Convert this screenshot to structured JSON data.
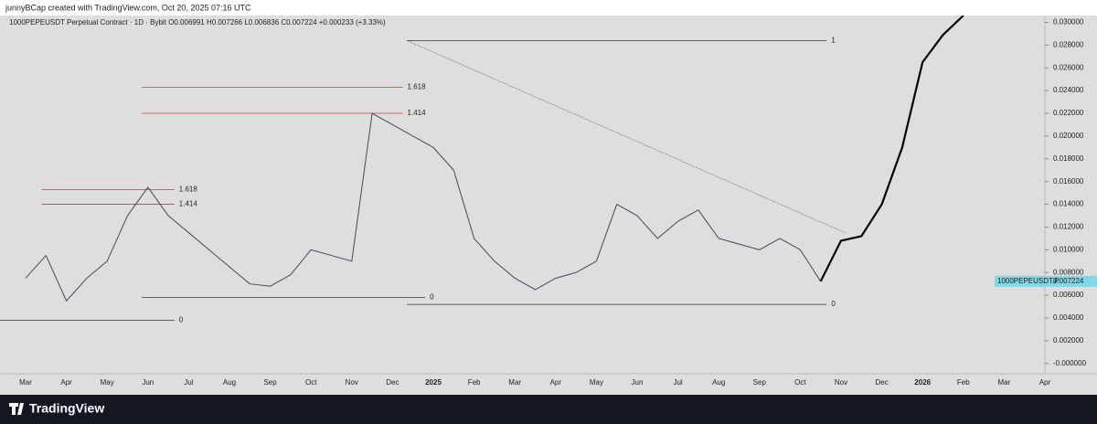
{
  "header": {
    "credit": "junnyBCap created with TradingView.com, Oct 20, 2025 07:16 UTC",
    "brand": "TradingView"
  },
  "chart_data": {
    "type": "line",
    "title": "1000PEPEUSDT Perpetual Contract · 1D · Bybit  O0.006991  H0.007266  L0.006836  C0.007224  +0.000233 (+3.33%)",
    "categories": [
      "Mar",
      null,
      "Apr",
      null,
      "May",
      null,
      "Jun",
      null,
      "Jul",
      null,
      "Aug",
      null,
      "Sep",
      null,
      "Oct",
      null,
      "Nov",
      null,
      "Dec",
      null,
      "2025",
      null,
      "Feb",
      null,
      "Mar",
      null,
      "Apr",
      null,
      "May",
      null,
      "Jun",
      null,
      "Jul",
      null,
      "Aug",
      null,
      "Sep",
      null,
      "Oct",
      null,
      "Nov",
      null,
      "Dec",
      null,
      "2026",
      null,
      "Feb",
      null,
      "Mar",
      null,
      "Apr"
    ],
    "series": [
      {
        "name": "1000PEPEUSDT.P",
        "color": "#3d4b5e",
        "width": 1,
        "values": [
          0.0075,
          0.0095,
          0.0055,
          0.0075,
          0.009,
          0.013,
          0.0155,
          0.013,
          0.0115,
          0.01,
          0.0085,
          0.007,
          0.0068,
          0.0078,
          0.01,
          0.0095,
          0.009,
          0.022,
          0.021,
          0.02,
          0.019,
          0.017,
          0.011,
          0.009,
          0.0075,
          0.0065,
          0.0075,
          0.008,
          0.009,
          0.014,
          0.013,
          0.011,
          0.0125,
          0.0135,
          0.011,
          0.0105,
          0.01,
          0.011,
          0.01,
          0.007224,
          null,
          null,
          null,
          null,
          null,
          null,
          null,
          null,
          null,
          null,
          null
        ]
      },
      {
        "color": "#000000",
        "width": 2.2,
        "values": [
          null,
          null,
          null,
          null,
          null,
          null,
          null,
          null,
          null,
          null,
          null,
          null,
          null,
          null,
          null,
          null,
          null,
          null,
          null,
          null,
          null,
          null,
          null,
          null,
          null,
          null,
          null,
          null,
          null,
          null,
          null,
          null,
          null,
          null,
          null,
          null,
          null,
          null,
          null,
          0.007224,
          0.0108,
          0.0112,
          0.014,
          0.019,
          0.0265,
          0.0289,
          0.0306,
          null,
          null,
          null,
          null
        ]
      }
    ],
    "ylim": [
      -0.0009,
      0.0306
    ],
    "yticks": [
      {
        "value": 0.03,
        "label": "0.030000"
      },
      {
        "value": 0.028,
        "label": "0.028000"
      },
      {
        "value": 0.026,
        "label": "0.026000"
      },
      {
        "value": 0.024,
        "label": "0.024000"
      },
      {
        "value": 0.022,
        "label": "0.022000"
      },
      {
        "value": 0.02,
        "label": "0.020000"
      },
      {
        "value": 0.018,
        "label": "0.018000"
      },
      {
        "value": 0.016,
        "label": "0.016000"
      },
      {
        "value": 0.014,
        "label": "0.014000"
      },
      {
        "value": 0.012,
        "label": "0.012000"
      },
      {
        "value": 0.01,
        "label": "0.010000"
      },
      {
        "value": 0.008,
        "label": "0.008000"
      },
      {
        "value": 0.006,
        "label": "0.006000"
      },
      {
        "value": 0.004,
        "label": "0.004000"
      },
      {
        "value": 0.002,
        "label": "0.002000"
      },
      {
        "value": 0,
        "label": "-0.000000"
      }
    ],
    "levels": [
      {
        "label": "1.618",
        "value": 0.0243,
        "from": 5.7,
        "to": 18.5,
        "color": "#e0303a"
      },
      {
        "label": "1.414",
        "value": 0.022,
        "from": 5.7,
        "to": 18.5,
        "color": "#e0303a"
      },
      {
        "label": "1",
        "value": 0.0284,
        "from": 18.7,
        "to": 39.3,
        "color": "#333333"
      },
      {
        "label": "0",
        "value": 0.0052,
        "from": 18.7,
        "to": 39.3,
        "color": "#333333"
      },
      {
        "label": "1.618",
        "value": 0.0153,
        "from": 0.8,
        "to": 7.3,
        "color": "#e0303a"
      },
      {
        "label": "1.414",
        "value": 0.014,
        "from": 0.8,
        "to": 7.3,
        "color": "#e0303a"
      },
      {
        "label": "0",
        "value": 0.0058,
        "from": 5.7,
        "to": 19.6,
        "color": "#333333"
      },
      {
        "label": "0",
        "value": 0.0038,
        "from": -1.3,
        "to": 7.3,
        "color": "#333333"
      }
    ],
    "trendline": {
      "x": [
        18.7,
        40.2
      ],
      "y": [
        0.0284,
        0.0115
      ],
      "color": "#777777"
    },
    "last_price": {
      "label": "1000PEPEUSDT.P",
      "value": 0.007224,
      "color": "#7fd8e8"
    }
  }
}
